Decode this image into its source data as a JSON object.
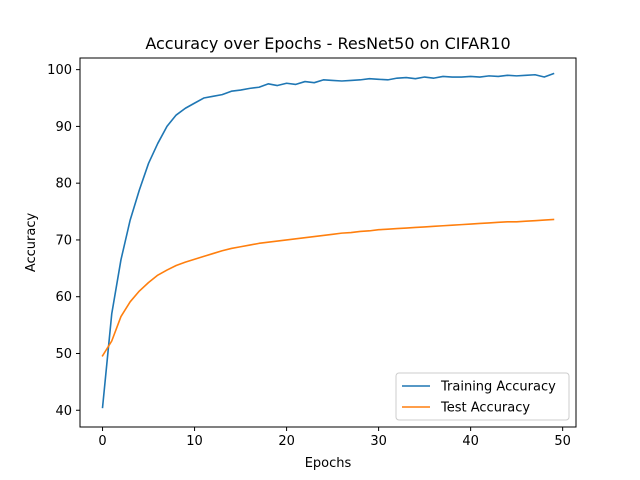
{
  "chart_data": {
    "type": "line",
    "title": "Accuracy over Epochs - ResNet50 on CIFAR10",
    "xlabel": "Epochs",
    "ylabel": "Accuracy",
    "xlim": [
      -2.45,
      51.45
    ],
    "ylim": [
      37.05,
      102.05
    ],
    "xticks": [
      0,
      10,
      20,
      30,
      40,
      50
    ],
    "yticks": [
      40,
      50,
      60,
      70,
      80,
      90,
      100
    ],
    "grid": false,
    "legend_position": "lower right",
    "x": [
      0,
      1,
      2,
      3,
      4,
      5,
      6,
      7,
      8,
      9,
      10,
      11,
      12,
      13,
      14,
      15,
      16,
      17,
      18,
      19,
      20,
      21,
      22,
      23,
      24,
      25,
      26,
      27,
      28,
      29,
      30,
      31,
      32,
      33,
      34,
      35,
      36,
      37,
      38,
      39,
      40,
      41,
      42,
      43,
      44,
      45,
      46,
      47,
      48,
      49
    ],
    "series": [
      {
        "name": "Training Accuracy",
        "color": "#1f77b4",
        "values": [
          40.5,
          57.0,
          66.5,
          73.5,
          78.8,
          83.5,
          87.0,
          90.0,
          92.0,
          93.2,
          94.1,
          95.0,
          95.3,
          95.6,
          96.2,
          96.4,
          96.7,
          96.9,
          97.5,
          97.2,
          97.6,
          97.4,
          97.9,
          97.7,
          98.2,
          98.1,
          98.0,
          98.1,
          98.2,
          98.4,
          98.3,
          98.2,
          98.5,
          98.6,
          98.4,
          98.7,
          98.5,
          98.8,
          98.7,
          98.7,
          98.8,
          98.7,
          98.9,
          98.8,
          99.0,
          98.9,
          99.0,
          99.1,
          98.7,
          99.3
        ]
      },
      {
        "name": "Test Accuracy",
        "color": "#ff7f0e",
        "values": [
          49.6,
          52.2,
          56.5,
          59.1,
          61.0,
          62.5,
          63.8,
          64.7,
          65.5,
          66.1,
          66.6,
          67.1,
          67.6,
          68.1,
          68.5,
          68.8,
          69.1,
          69.4,
          69.6,
          69.8,
          70.0,
          70.2,
          70.4,
          70.6,
          70.8,
          71.0,
          71.2,
          71.3,
          71.5,
          71.6,
          71.8,
          71.9,
          72.0,
          72.1,
          72.2,
          72.3,
          72.4,
          72.5,
          72.6,
          72.7,
          72.8,
          72.9,
          73.0,
          73.1,
          73.2,
          73.2,
          73.3,
          73.4,
          73.5,
          73.6
        ]
      }
    ]
  }
}
